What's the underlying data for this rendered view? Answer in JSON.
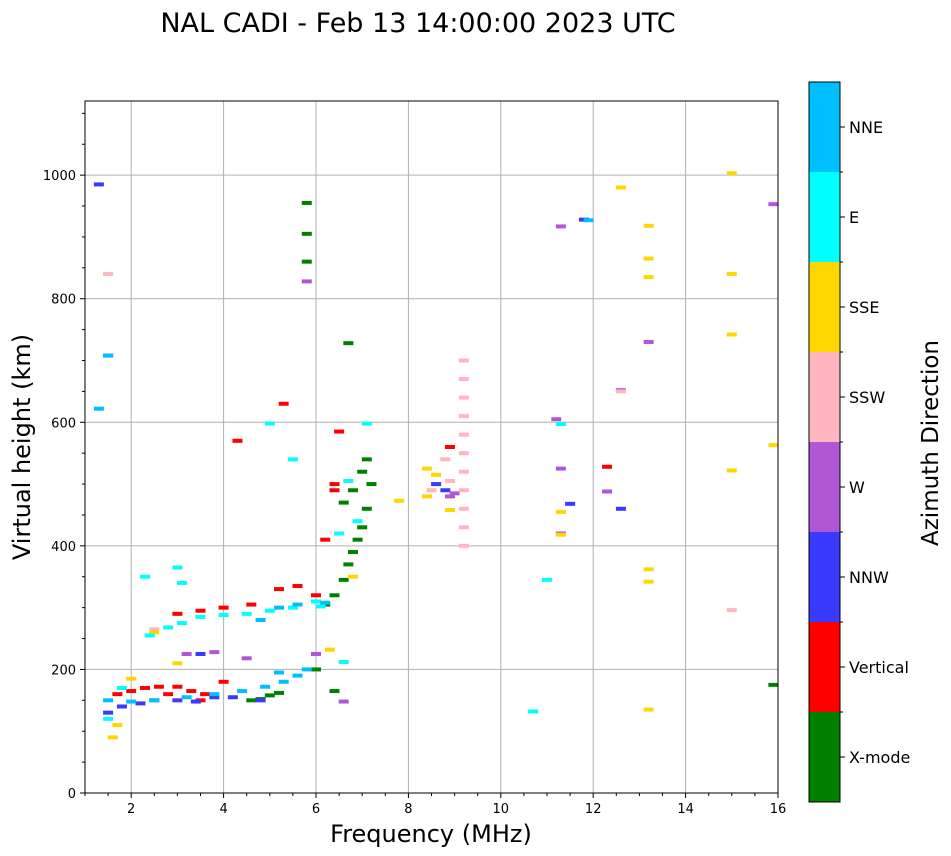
{
  "chart_data": {
    "type": "scatter",
    "title": "NAL CADI - Feb 13 14:00:00 2023 UTC",
    "xlabel": "Frequency (MHz)",
    "ylabel": "Virtual height (km)",
    "xlim": [
      1,
      16
    ],
    "ylim": [
      0,
      1120
    ],
    "xticks": [
      2,
      4,
      6,
      8,
      10,
      12,
      14,
      16
    ],
    "yticks": [
      0,
      200,
      400,
      600,
      800,
      1000
    ],
    "grid": true,
    "colorbar": {
      "label": "Azimuth Direction",
      "categories": [
        {
          "name": "X-mode",
          "color": "#008000"
        },
        {
          "name": "Vertical",
          "color": "#ff0000"
        },
        {
          "name": "NNW",
          "color": "#3a3aff"
        },
        {
          "name": "W",
          "color": "#b157d6"
        },
        {
          "name": "SSW",
          "color": "#ffb6c1"
        },
        {
          "name": "SSE",
          "color": "#ffd700"
        },
        {
          "name": "E",
          "color": "#00ffff"
        },
        {
          "name": "NNE",
          "color": "#00bfff"
        }
      ]
    },
    "series": [
      {
        "name": "X-mode",
        "points": [
          [
            4.6,
            150
          ],
          [
            4.8,
            152
          ],
          [
            5.0,
            158
          ],
          [
            5.2,
            162
          ],
          [
            6.2,
            305
          ],
          [
            6.4,
            320
          ],
          [
            6.6,
            345
          ],
          [
            6.7,
            370
          ],
          [
            6.8,
            390
          ],
          [
            6.9,
            410
          ],
          [
            7.0,
            430
          ],
          [
            7.1,
            460
          ],
          [
            7.2,
            500
          ],
          [
            7.0,
            520
          ],
          [
            6.8,
            490
          ],
          [
            6.6,
            470
          ],
          [
            7.1,
            540
          ],
          [
            6.0,
            200
          ],
          [
            6.4,
            165
          ],
          [
            6.7,
            728
          ],
          [
            15.9,
            175
          ],
          [
            5.8,
            860
          ],
          [
            5.8,
            905
          ],
          [
            5.8,
            955
          ]
        ]
      },
      {
        "name": "Vertical",
        "points": [
          [
            1.7,
            160
          ],
          [
            2.0,
            165
          ],
          [
            2.3,
            170
          ],
          [
            2.6,
            172
          ],
          [
            3.0,
            172
          ],
          [
            3.3,
            165
          ],
          [
            3.6,
            160
          ],
          [
            4.0,
            180
          ],
          [
            2.8,
            160
          ],
          [
            3.5,
            150
          ],
          [
            3.0,
            290
          ],
          [
            3.5,
            295
          ],
          [
            4.0,
            300
          ],
          [
            4.6,
            305
          ],
          [
            5.2,
            330
          ],
          [
            5.6,
            335
          ],
          [
            6.0,
            320
          ],
          [
            6.2,
            410
          ],
          [
            6.4,
            500
          ],
          [
            6.5,
            585
          ],
          [
            8.9,
            560
          ],
          [
            12.3,
            528
          ],
          [
            4.3,
            570
          ],
          [
            5.3,
            630
          ],
          [
            6.4,
            490
          ]
        ]
      },
      {
        "name": "NNW",
        "points": [
          [
            1.5,
            130
          ],
          [
            1.8,
            140
          ],
          [
            2.2,
            145
          ],
          [
            2.5,
            150
          ],
          [
            3.0,
            150
          ],
          [
            3.4,
            148
          ],
          [
            3.8,
            155
          ],
          [
            4.2,
            155
          ],
          [
            4.8,
            150
          ],
          [
            3.5,
            225
          ],
          [
            8.6,
            500
          ],
          [
            8.8,
            490
          ],
          [
            12.6,
            460
          ],
          [
            11.5,
            468
          ],
          [
            11.8,
            928
          ],
          [
            1.3,
            985
          ],
          [
            1.5,
            708
          ]
        ]
      },
      {
        "name": "W",
        "points": [
          [
            3.2,
            225
          ],
          [
            3.8,
            228
          ],
          [
            6.0,
            225
          ],
          [
            4.5,
            218
          ],
          [
            6.6,
            148
          ],
          [
            8.9,
            480
          ],
          [
            9.0,
            485
          ],
          [
            12.3,
            488
          ],
          [
            11.3,
            420
          ],
          [
            11.3,
            525
          ],
          [
            11.2,
            605
          ],
          [
            12.6,
            652
          ],
          [
            13.2,
            730
          ],
          [
            15.9,
            953
          ],
          [
            11.3,
            917
          ],
          [
            5.8,
            828
          ]
        ]
      },
      {
        "name": "SSW",
        "points": [
          [
            9.2,
            400
          ],
          [
            9.2,
            430
          ],
          [
            9.2,
            460
          ],
          [
            9.2,
            490
          ],
          [
            9.2,
            520
          ],
          [
            9.2,
            550
          ],
          [
            9.2,
            580
          ],
          [
            9.2,
            610
          ],
          [
            9.2,
            640
          ],
          [
            9.2,
            670
          ],
          [
            9.2,
            700
          ],
          [
            8.8,
            540
          ],
          [
            8.9,
            505
          ],
          [
            8.5,
            490
          ],
          [
            15.0,
            296
          ],
          [
            12.6,
            650
          ],
          [
            2.5,
            265
          ],
          [
            1.5,
            840
          ]
        ]
      },
      {
        "name": "SSE",
        "points": [
          [
            1.6,
            90
          ],
          [
            1.7,
            110
          ],
          [
            2.0,
            185
          ],
          [
            2.5,
            260
          ],
          [
            3.0,
            210
          ],
          [
            6.3,
            232
          ],
          [
            6.8,
            350
          ],
          [
            8.4,
            480
          ],
          [
            8.4,
            525
          ],
          [
            8.6,
            515
          ],
          [
            8.9,
            458
          ],
          [
            11.3,
            418
          ],
          [
            11.3,
            455
          ],
          [
            13.2,
            135
          ],
          [
            13.2,
            342
          ],
          [
            13.2,
            362
          ],
          [
            15.0,
            522
          ],
          [
            15.9,
            563
          ],
          [
            15.0,
            742
          ],
          [
            15.0,
            840
          ],
          [
            13.2,
            835
          ],
          [
            13.2,
            865
          ],
          [
            13.2,
            918
          ],
          [
            12.6,
            980
          ],
          [
            15.0,
            1003
          ],
          [
            7.8,
            473
          ]
        ]
      },
      {
        "name": "E",
        "points": [
          [
            1.5,
            120
          ],
          [
            1.8,
            170
          ],
          [
            2.4,
            255
          ],
          [
            2.8,
            268
          ],
          [
            3.1,
            275
          ],
          [
            3.5,
            285
          ],
          [
            4.0,
            288
          ],
          [
            4.5,
            290
          ],
          [
            5.0,
            295
          ],
          [
            5.5,
            300
          ],
          [
            6.0,
            310
          ],
          [
            2.3,
            350
          ],
          [
            3.0,
            365
          ],
          [
            3.1,
            340
          ],
          [
            6.1,
            302
          ],
          [
            6.5,
            420
          ],
          [
            6.9,
            440
          ],
          [
            6.7,
            505
          ],
          [
            7.1,
            598
          ],
          [
            11.0,
            345
          ],
          [
            10.7,
            132
          ],
          [
            11.3,
            597
          ],
          [
            5.5,
            540
          ],
          [
            5.0,
            598
          ],
          [
            6.6,
            212
          ]
        ]
      },
      {
        "name": "NNE",
        "points": [
          [
            1.5,
            150
          ],
          [
            2.0,
            148
          ],
          [
            2.5,
            150
          ],
          [
            3.2,
            155
          ],
          [
            3.8,
            160
          ],
          [
            4.4,
            165
          ],
          [
            4.9,
            172
          ],
          [
            5.3,
            180
          ],
          [
            5.6,
            190
          ],
          [
            5.8,
            200
          ],
          [
            4.8,
            280
          ],
          [
            5.2,
            300
          ],
          [
            5.6,
            305
          ],
          [
            5.2,
            195
          ],
          [
            6.2,
            308
          ],
          [
            11.9,
            927
          ],
          [
            1.3,
            622
          ],
          [
            1.5,
            708
          ]
        ]
      }
    ]
  }
}
